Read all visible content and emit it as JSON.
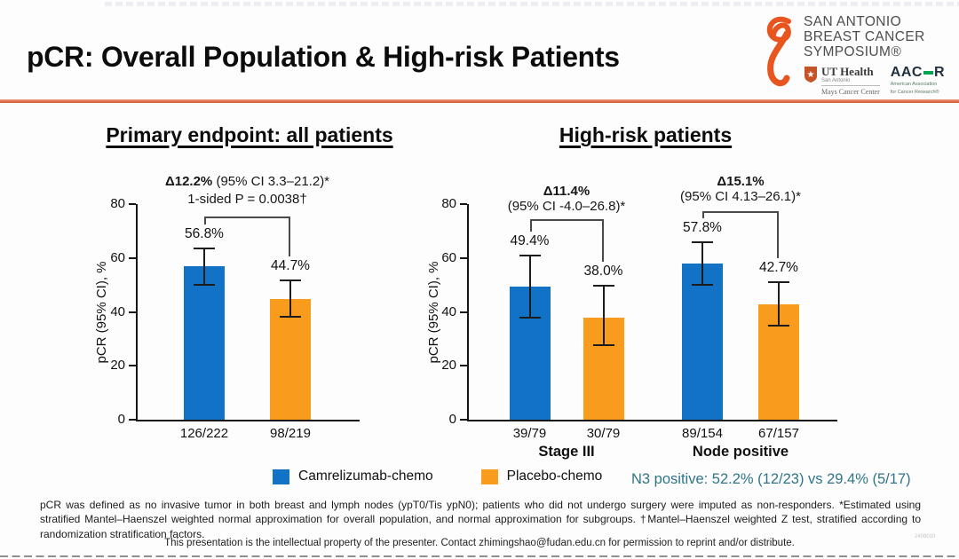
{
  "slide": {
    "title": "pCR: Overall Population & High-risk Patients",
    "n3_note": "N3 positive: 52.2% (12/23) vs 29.4% (5/17)",
    "footnote": "pCR was defined as no invasive tumor in both breast and lymph nodes (ypT0/Tis ypN0); patients who did not undergo surgery were imputed as non-responders. *Estimated using stratified Mantel–Haenszel weighted normal approximation for overall population, and normal approximation for subgroups. †Mantel–Haenszel weighted Z test, stratified according to randomization stratification factors.",
    "property_line": "This presentation is the intellectual property of the presenter. Contact zhimingshao@fudan.edu.cn for permission to reprint and/or distribute.",
    "watermark": "2409010"
  },
  "logo": {
    "symposium_line1": "SAN ANTONIO",
    "symposium_line2": "BREAST CANCER",
    "symposium_line3": "SYMPOSIUM®",
    "ut_health": "UT Health",
    "ut_city": "San Antonio",
    "ut_center": "Mays Cancer Center",
    "aacr_left": "AAC",
    "aacr_right": "R",
    "aacr_sub1": "American Association",
    "aacr_sub2": "for Cancer Research®"
  },
  "colors": {
    "camrelizumab": "#1272C6",
    "placebo": "#F99B1C",
    "accent_rule": "#DC6C4B",
    "n3_note": "#2F7588",
    "ribbon": "#E8551E",
    "aacr_green": "#00A651",
    "axis": "#161616"
  },
  "legend": [
    {
      "label": "Camrelizumab-chemo",
      "series": "camrelizumab"
    },
    {
      "label": "Placebo-chemo",
      "series": "placebo"
    }
  ],
  "chart_data": [
    {
      "type": "bar",
      "title": "Primary endpoint: all patients",
      "ylabel": "pCR (95% CI), %",
      "ylim": [
        0,
        80
      ],
      "yticks": [
        0,
        20,
        40,
        60,
        80
      ],
      "grid": false,
      "groups": [
        {
          "label": "",
          "annotation": {
            "delta": "Δ12.2%",
            "rest": " (95% CI 3.3–21.2)*",
            "line2": "1-sided P = 0.0038†"
          },
          "bars": [
            {
              "series": "Camrelizumab-chemo",
              "value": 56.8,
              "label": "56.8%",
              "ci_low": 50.0,
              "ci_high": 63.5,
              "n_label": "126/222"
            },
            {
              "series": "Placebo-chemo",
              "value": 44.7,
              "label": "44.7%",
              "ci_low": 38.1,
              "ci_high": 51.6,
              "n_label": "98/219"
            }
          ]
        }
      ]
    },
    {
      "type": "bar",
      "title": "High-risk patients",
      "ylabel": "pCR (95% CI), %",
      "ylim": [
        0,
        80
      ],
      "yticks": [
        0,
        20,
        40,
        60,
        80
      ],
      "grid": false,
      "groups": [
        {
          "label": "Stage III",
          "annotation": {
            "delta": "Δ11.4%",
            "rest": "",
            "line2": "(95% CI -4.0–26.8)*"
          },
          "bars": [
            {
              "series": "Camrelizumab-chemo",
              "value": 49.4,
              "label": "49.4%",
              "ci_low": 38.0,
              "ci_high": 61.0,
              "n_label": "39/79"
            },
            {
              "series": "Placebo-chemo",
              "value": 38.0,
              "label": "38.0%",
              "ci_low": 27.5,
              "ci_high": 49.8,
              "n_label": "30/79"
            }
          ]
        },
        {
          "label": "Node positive",
          "annotation": {
            "delta": "Δ15.1%",
            "rest": "",
            "line2": "(95% CI 4.13–26.1)*"
          },
          "bars": [
            {
              "series": "Camrelizumab-chemo",
              "value": 57.8,
              "label": "57.8%",
              "ci_low": 49.9,
              "ci_high": 65.7,
              "n_label": "89/154"
            },
            {
              "series": "Placebo-chemo",
              "value": 42.7,
              "label": "42.7%",
              "ci_low": 35.0,
              "ci_high": 50.9,
              "n_label": "67/157"
            }
          ]
        }
      ]
    }
  ]
}
